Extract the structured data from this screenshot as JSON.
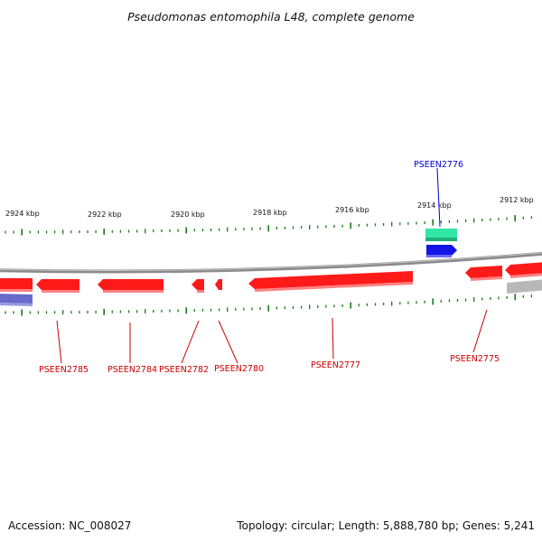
{
  "title": "Pseudomonas entomophila L48, complete genome",
  "footer": {
    "accession": "Accession: NC_008027",
    "summary": "Topology: circular; Length: 5,888,780 bp; Genes: 5,241"
  },
  "colors": {
    "backbone": "#8a8a8a",
    "forward_gene": "#ff1a1a",
    "reverse_gene": "#ff1a1a",
    "rna_teal": "#33e6a6",
    "blue_gene": "#1414e6",
    "pseudo_gray": "#b8b8b8",
    "tick": "#1a7a1a",
    "label_red": "#cc0000",
    "label_blue": "#0000cc"
  },
  "kbp_labels": [
    "2924 kbp",
    "2922 kbp",
    "2920 kbp",
    "2918 kbp",
    "2916 kbp",
    "2914 kbp",
    "2912 kbp"
  ],
  "gene_labels": [
    {
      "name": "PSEEN2785",
      "color": "red"
    },
    {
      "name": "PSEEN2784",
      "color": "red"
    },
    {
      "name": "PSEEN2782",
      "color": "red"
    },
    {
      "name": "PSEEN2780",
      "color": "red"
    },
    {
      "name": "PSEEN2777",
      "color": "red"
    },
    {
      "name": "PSEEN2775",
      "color": "red"
    },
    {
      "name": "PSEEN2776",
      "color": "blue"
    }
  ]
}
